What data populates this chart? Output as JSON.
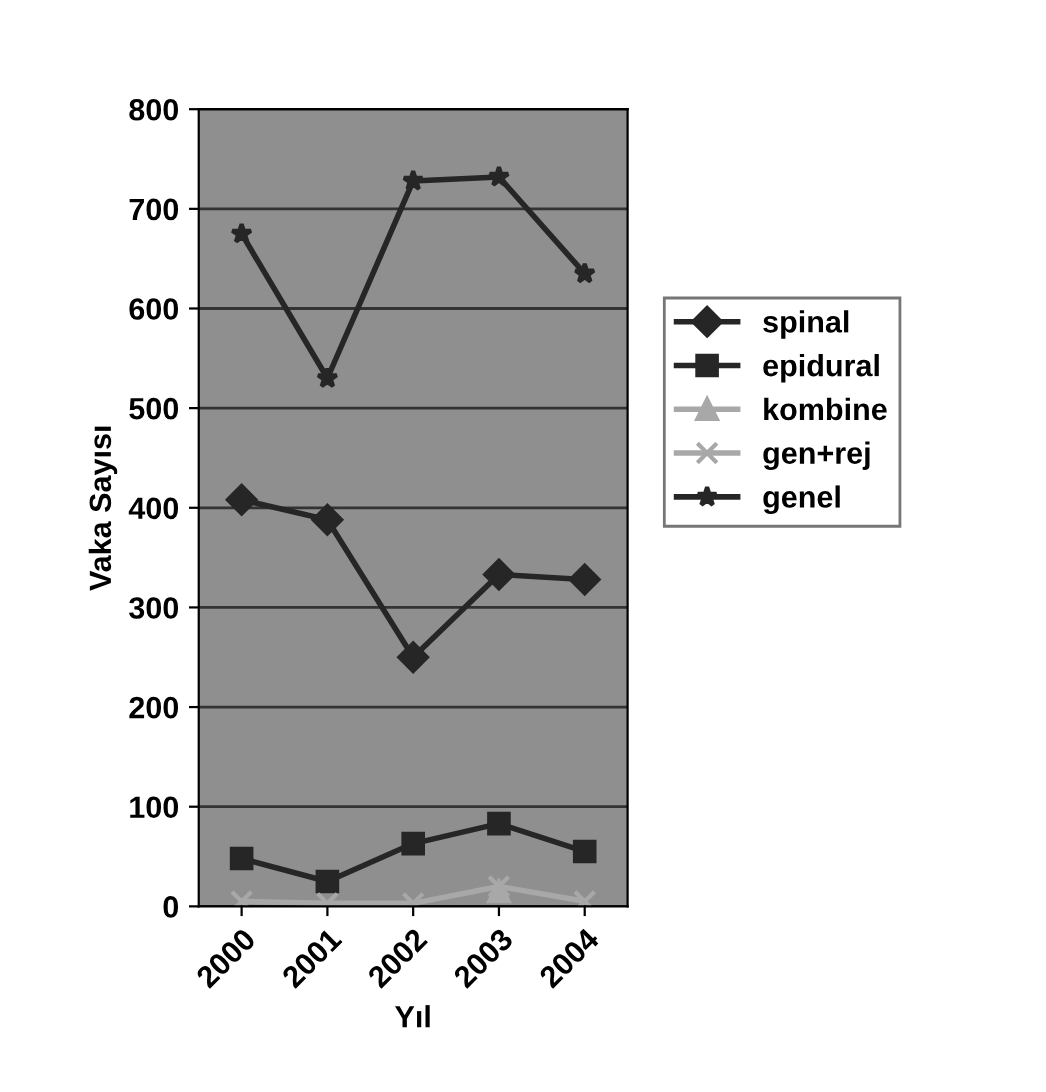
{
  "chart_data": {
    "type": "line",
    "xlabel": "Yıl",
    "ylabel": "Vaka Sayısı",
    "categories": [
      "2000",
      "2001",
      "2002",
      "2003",
      "2004"
    ],
    "series": [
      {
        "name": "spinal",
        "color": "#262626",
        "marker": "diamond",
        "values": [
          408,
          388,
          250,
          333,
          328
        ]
      },
      {
        "name": "epidural",
        "color": "#262626",
        "marker": "square",
        "values": [
          48,
          25,
          63,
          83,
          55
        ]
      },
      {
        "name": "kombine",
        "color": "#a8a8a8",
        "marker": "triangle",
        "values": [
          null,
          null,
          null,
          15,
          null
        ]
      },
      {
        "name": "gen+rej",
        "color": "#a8a8a8",
        "marker": "cross",
        "values": [
          5,
          3,
          3,
          20,
          5
        ]
      },
      {
        "name": "genel",
        "color": "#262626",
        "marker": "star",
        "values": [
          675,
          530,
          728,
          732,
          635
        ]
      }
    ],
    "ylim": [
      0,
      800
    ],
    "yticks": [
      0,
      100,
      200,
      300,
      400,
      500,
      600,
      700,
      800
    ],
    "grid": "y",
    "legend": "right",
    "line_style": "solid"
  }
}
